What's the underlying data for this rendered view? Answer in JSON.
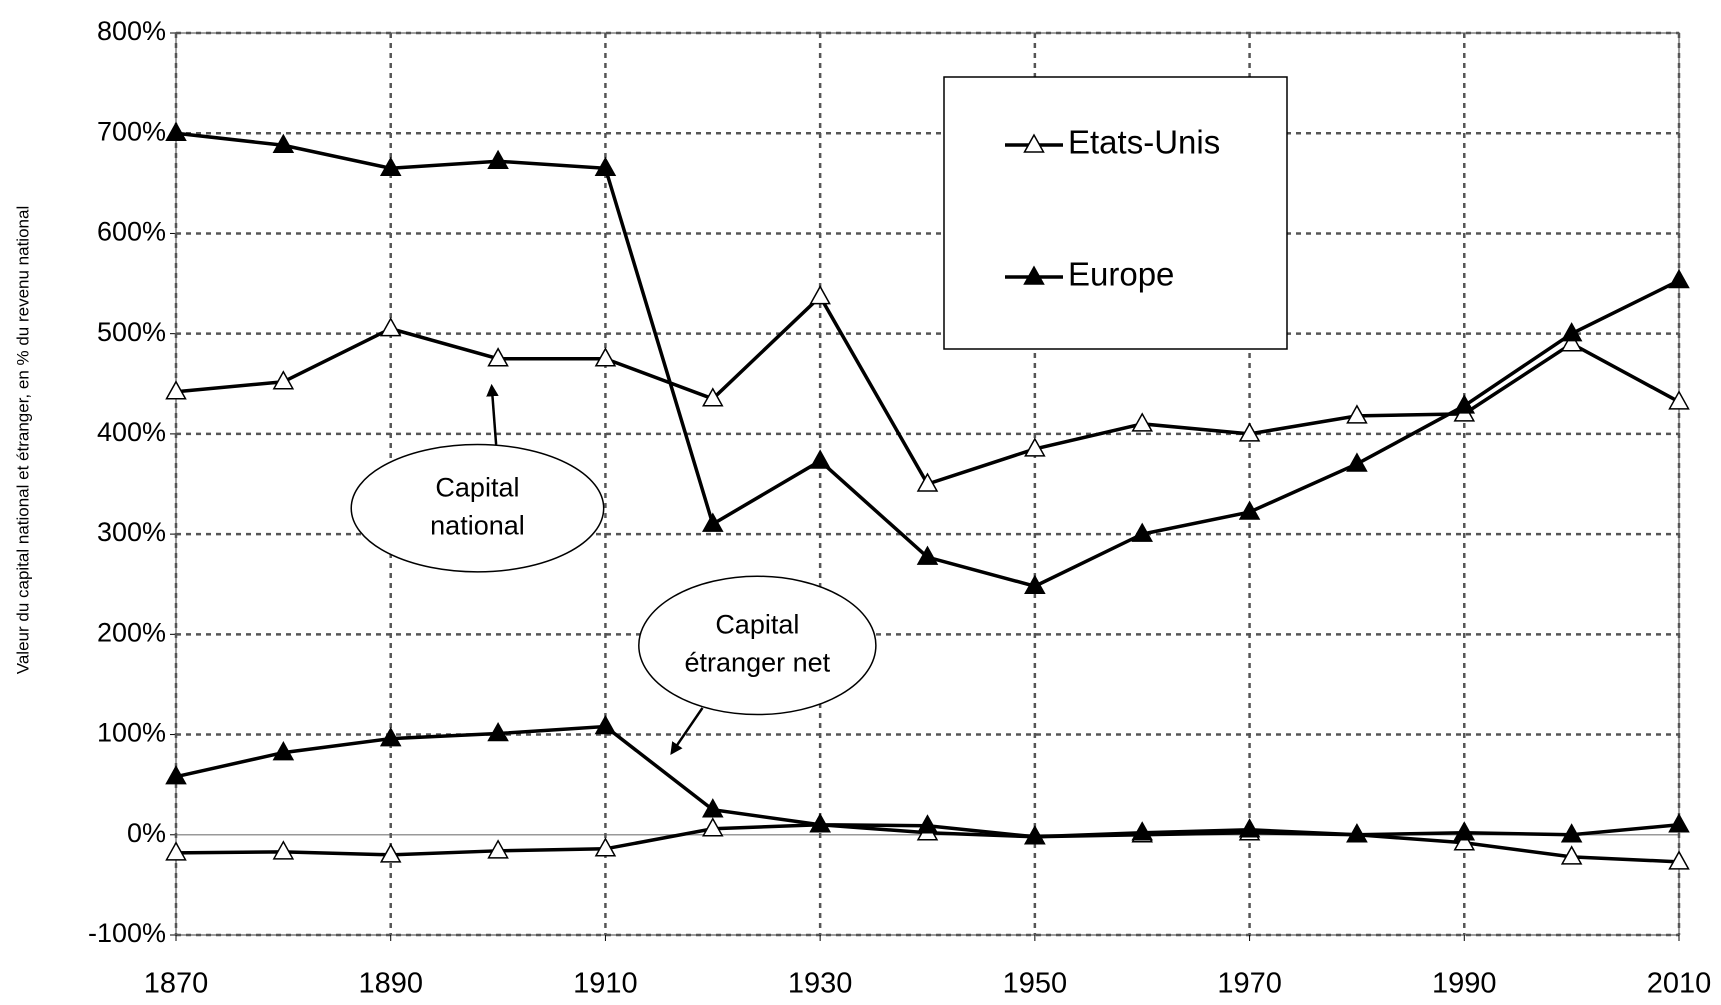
{
  "chart_data": {
    "type": "line",
    "y_label": "Valeur du capital national et étranger, en % du revenu national",
    "x": [
      1870,
      1880,
      1890,
      1900,
      1910,
      1920,
      1930,
      1940,
      1950,
      1960,
      1970,
      1980,
      1990,
      2000,
      2010
    ],
    "xlim": [
      1870,
      2010
    ],
    "xticks": [
      1870,
      1890,
      1910,
      1930,
      1950,
      1970,
      1990,
      2010
    ],
    "ylim": [
      -100,
      800
    ],
    "yticks": [
      {
        "value": -100,
        "label": "-100%"
      },
      {
        "value": 0,
        "label": "0%"
      },
      {
        "value": 100,
        "label": "100%"
      },
      {
        "value": 200,
        "label": "200%"
      },
      {
        "value": 300,
        "label": "300%"
      },
      {
        "value": 400,
        "label": "400%"
      },
      {
        "value": 500,
        "label": "500%"
      },
      {
        "value": 600,
        "label": "600%"
      },
      {
        "value": 700,
        "label": "700%"
      },
      {
        "value": 800,
        "label": "800%"
      }
    ],
    "grid": true,
    "series": [
      {
        "name": "Etats-Unis",
        "marker": "open",
        "color": "#000000",
        "values": [
          442,
          452,
          505,
          475,
          475,
          435,
          537,
          350,
          385,
          410,
          400,
          418,
          420,
          490,
          432
        ]
      },
      {
        "name": "Europe",
        "marker": "filled",
        "color": "#000000",
        "values": [
          700,
          688,
          665,
          672,
          665,
          310,
          373,
          277,
          248,
          300,
          322,
          370,
          428,
          500,
          553
        ]
      },
      {
        "marker": "open",
        "color": "#000000",
        "values": [
          -18,
          -17,
          -20,
          -16,
          -14,
          6,
          10,
          2,
          -2,
          0,
          2,
          0,
          -8,
          -22,
          -27
        ]
      },
      {
        "marker": "filled",
        "color": "#000000",
        "values": [
          58,
          82,
          96,
          101,
          108,
          25,
          10,
          9,
          -2,
          2,
          5,
          0,
          2,
          0,
          10
        ]
      }
    ],
    "annotations": [
      {
        "lines": [
          "Capital",
          "national"
        ]
      },
      {
        "lines": [
          "Capital",
          "étranger net"
        ]
      }
    ]
  }
}
